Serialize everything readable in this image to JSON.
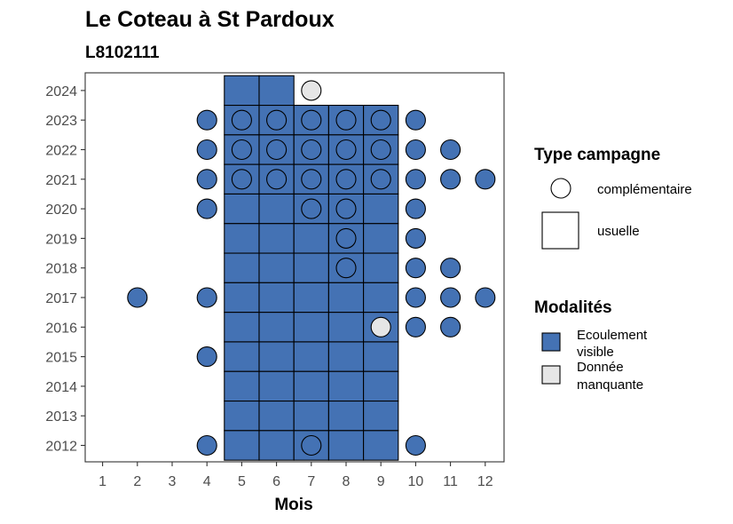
{
  "chart_data": {
    "type": "heatmap",
    "title": "Le Coteau à St Pardoux",
    "subtitle": "L8102111",
    "xlabel": "Mois",
    "ylabel": "",
    "x_ticks": [
      1,
      2,
      3,
      4,
      5,
      6,
      7,
      8,
      9,
      10,
      11,
      12
    ],
    "y_ticks": [
      2012,
      2013,
      2014,
      2015,
      2016,
      2017,
      2018,
      2019,
      2020,
      2021,
      2022,
      2023,
      2024
    ],
    "colors": {
      "Ecoulement visible": "#4472b4",
      "Donnée manquante": "#e6e6e6"
    },
    "usuelle": [
      {
        "year": 2024,
        "months": [
          5,
          6
        ]
      },
      {
        "year": 2023,
        "months": [
          5,
          6,
          7,
          8,
          9
        ]
      },
      {
        "year": 2022,
        "months": [
          5,
          6,
          7,
          8,
          9
        ]
      },
      {
        "year": 2021,
        "months": [
          5,
          6,
          7,
          8,
          9
        ]
      },
      {
        "year": 2020,
        "months": [
          5,
          6,
          7,
          8,
          9
        ]
      },
      {
        "year": 2019,
        "months": [
          5,
          6,
          7,
          8,
          9
        ]
      },
      {
        "year": 2018,
        "months": [
          5,
          6,
          7,
          8,
          9
        ]
      },
      {
        "year": 2017,
        "months": [
          5,
          6,
          7,
          8,
          9
        ]
      },
      {
        "year": 2016,
        "months": [
          5,
          6,
          7,
          8,
          9
        ]
      },
      {
        "year": 2015,
        "months": [
          5,
          6,
          7,
          8,
          9
        ]
      },
      {
        "year": 2014,
        "months": [
          5,
          6,
          7,
          8,
          9
        ]
      },
      {
        "year": 2013,
        "months": [
          5,
          6,
          7,
          8,
          9
        ]
      },
      {
        "year": 2012,
        "months": [
          5,
          6,
          7,
          8,
          9
        ]
      }
    ],
    "complementaire": [
      {
        "year": 2024,
        "month": 7,
        "modalite": "Donnée manquante"
      },
      {
        "year": 2023,
        "month": 4,
        "modalite": "Ecoulement visible"
      },
      {
        "year": 2023,
        "month": 5,
        "modalite": "Ecoulement visible"
      },
      {
        "year": 2023,
        "month": 6,
        "modalite": "Ecoulement visible"
      },
      {
        "year": 2023,
        "month": 7,
        "modalite": "Ecoulement visible"
      },
      {
        "year": 2023,
        "month": 8,
        "modalite": "Ecoulement visible"
      },
      {
        "year": 2023,
        "month": 9,
        "modalite": "Ecoulement visible"
      },
      {
        "year": 2023,
        "month": 10,
        "modalite": "Ecoulement visible"
      },
      {
        "year": 2022,
        "month": 4,
        "modalite": "Ecoulement visible"
      },
      {
        "year": 2022,
        "month": 5,
        "modalite": "Ecoulement visible"
      },
      {
        "year": 2022,
        "month": 6,
        "modalite": "Ecoulement visible"
      },
      {
        "year": 2022,
        "month": 7,
        "modalite": "Ecoulement visible"
      },
      {
        "year": 2022,
        "month": 8,
        "modalite": "Ecoulement visible"
      },
      {
        "year": 2022,
        "month": 9,
        "modalite": "Ecoulement visible"
      },
      {
        "year": 2022,
        "month": 10,
        "modalite": "Ecoulement visible"
      },
      {
        "year": 2022,
        "month": 11,
        "modalite": "Ecoulement visible"
      },
      {
        "year": 2021,
        "month": 4,
        "modalite": "Ecoulement visible"
      },
      {
        "year": 2021,
        "month": 5,
        "modalite": "Ecoulement visible"
      },
      {
        "year": 2021,
        "month": 6,
        "modalite": "Ecoulement visible"
      },
      {
        "year": 2021,
        "month": 7,
        "modalite": "Ecoulement visible"
      },
      {
        "year": 2021,
        "month": 8,
        "modalite": "Ecoulement visible"
      },
      {
        "year": 2021,
        "month": 9,
        "modalite": "Ecoulement visible"
      },
      {
        "year": 2021,
        "month": 10,
        "modalite": "Ecoulement visible"
      },
      {
        "year": 2021,
        "month": 11,
        "modalite": "Ecoulement visible"
      },
      {
        "year": 2021,
        "month": 12,
        "modalite": "Ecoulement visible"
      },
      {
        "year": 2020,
        "month": 4,
        "modalite": "Ecoulement visible"
      },
      {
        "year": 2020,
        "month": 7,
        "modalite": "Ecoulement visible"
      },
      {
        "year": 2020,
        "month": 8,
        "modalite": "Ecoulement visible"
      },
      {
        "year": 2020,
        "month": 10,
        "modalite": "Ecoulement visible"
      },
      {
        "year": 2019,
        "month": 8,
        "modalite": "Ecoulement visible"
      },
      {
        "year": 2019,
        "month": 10,
        "modalite": "Ecoulement visible"
      },
      {
        "year": 2018,
        "month": 8,
        "modalite": "Ecoulement visible"
      },
      {
        "year": 2018,
        "month": 10,
        "modalite": "Ecoulement visible"
      },
      {
        "year": 2018,
        "month": 11,
        "modalite": "Ecoulement visible"
      },
      {
        "year": 2017,
        "month": 2,
        "modalite": "Ecoulement visible"
      },
      {
        "year": 2017,
        "month": 4,
        "modalite": "Ecoulement visible"
      },
      {
        "year": 2017,
        "month": 10,
        "modalite": "Ecoulement visible"
      },
      {
        "year": 2017,
        "month": 11,
        "modalite": "Ecoulement visible"
      },
      {
        "year": 2017,
        "month": 12,
        "modalite": "Ecoulement visible"
      },
      {
        "year": 2016,
        "month": 9,
        "modalite": "Donnée manquante"
      },
      {
        "year": 2016,
        "month": 10,
        "modalite": "Ecoulement visible"
      },
      {
        "year": 2016,
        "month": 11,
        "modalite": "Ecoulement visible"
      },
      {
        "year": 2015,
        "month": 4,
        "modalite": "Ecoulement visible"
      },
      {
        "year": 2012,
        "month": 4,
        "modalite": "Ecoulement visible"
      },
      {
        "year": 2012,
        "month": 7,
        "modalite": "Ecoulement visible"
      },
      {
        "year": 2012,
        "month": 10,
        "modalite": "Ecoulement visible"
      }
    ],
    "legend": {
      "position": "right",
      "type_title": "Type campagne",
      "type_items": [
        "complémentaire",
        "usuelle"
      ],
      "modalite_title": "Modalités",
      "modalite_items": [
        {
          "line1": "Ecoulement",
          "line2": "visible",
          "color": "#4472b4"
        },
        {
          "line1": "Donnée",
          "line2": "manquante",
          "color": "#e6e6e6"
        }
      ]
    }
  }
}
